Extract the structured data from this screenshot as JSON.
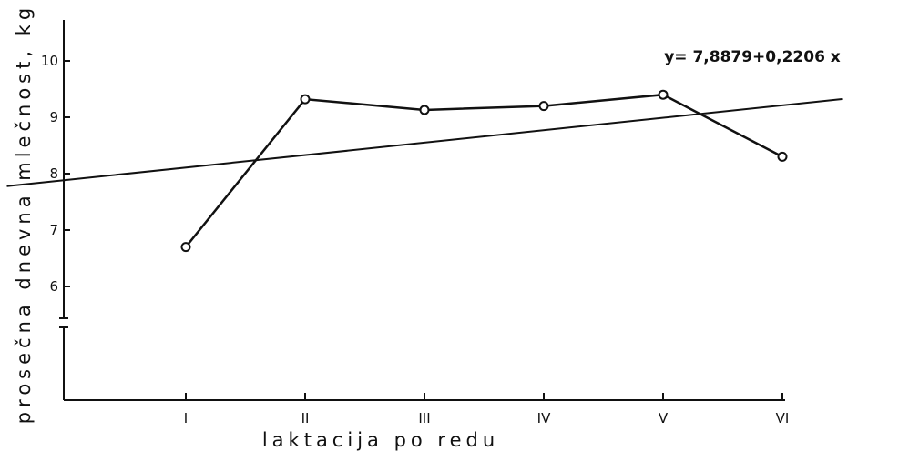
{
  "chart_data": {
    "type": "line",
    "title": "",
    "xlabel": "laktacija po redu",
    "ylabel": "prosečna dnevna mlečnost, kg",
    "categories": [
      "I",
      "II",
      "III",
      "IV",
      "V",
      "VI"
    ],
    "series": [
      {
        "values": [
          6.7,
          9.32,
          9.13,
          9.2,
          9.4,
          8.3
        ],
        "marker": "open-circle"
      }
    ],
    "trendline": {
      "equation_label": "y= 7,8879+0,2206 x",
      "intercept": 7.8879,
      "slope": 0.2206,
      "x_range": [
        -0.5,
        6.5
      ]
    },
    "yticks": [
      6,
      7,
      8,
      9,
      10
    ],
    "ylim": [
      5.4,
      10.4
    ],
    "y_axis_break": true,
    "grid": false,
    "legend": "none",
    "colors": {
      "ink": "#111111",
      "background": "#ffffff"
    }
  }
}
